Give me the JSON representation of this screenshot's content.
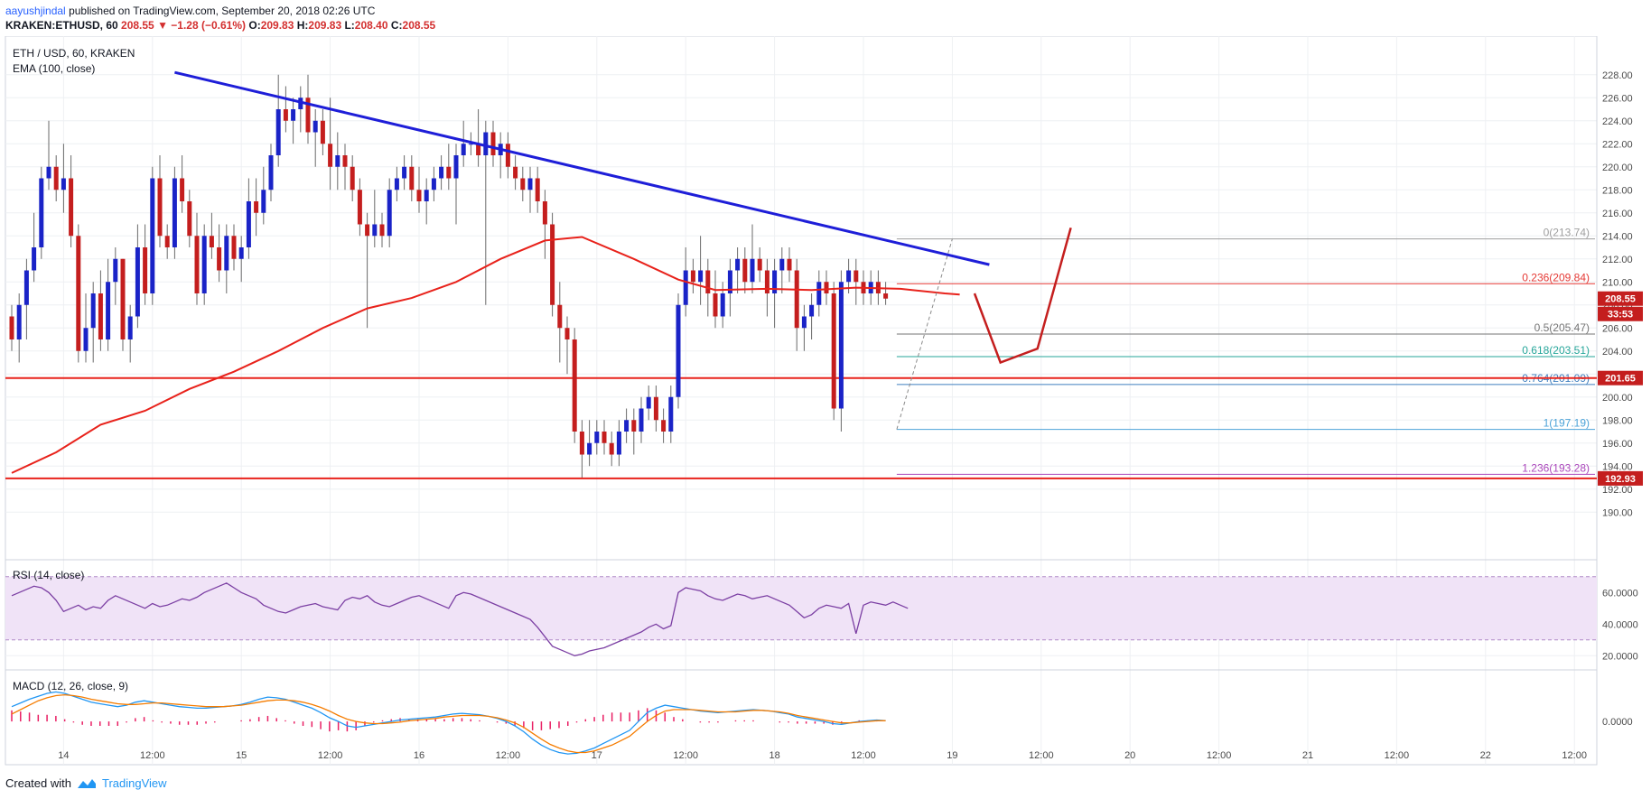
{
  "header": {
    "author": "aayushjindal",
    "published": "published on TradingView.com, September 20, 2018 02:26 UTC",
    "symbol": "KRAKEN:ETHUSD, 60",
    "last": "208.55",
    "change": "▼ −1.28 (−0.61%)",
    "o_label": "O:",
    "o": "209.83",
    "h_label": "H:",
    "h": "209.83",
    "l_label": "L:",
    "l": "208.40",
    "c_label": "C:",
    "c": "208.55"
  },
  "chart_labels": {
    "main_title": "ETH / USD, 60, KRAKEN",
    "ema_label": "EMA (100, close)",
    "rsi_label": "RSI (14, close)",
    "macd_label": "MACD (12, 26, close, 9)",
    "price_tag": "208.55",
    "countdown_tag": "33:53",
    "support_tag_1": "201.65",
    "support_tag_2": "192.93"
  },
  "colors": {
    "up": "#1a23c7",
    "down": "#c41e1e",
    "ema": "#e8221b",
    "trendline": "#1e1ed8",
    "support": "#e8221b",
    "rsi": "#7b3fa3",
    "macd": "#2196f3",
    "signal": "#f57c00",
    "hist": "#e91e63"
  },
  "footer": {
    "created_with": "Created with",
    "brand": "TradingView"
  },
  "chart_data": [
    {
      "type": "candlestick",
      "title": "ETH / USD, 60, KRAKEN",
      "x_ticks": [
        "14",
        "12:00",
        "15",
        "12:00",
        "16",
        "12:00",
        "17",
        "12:00",
        "18",
        "12:00",
        "19",
        "12:00",
        "20",
        "12:00",
        "21",
        "12:00",
        "22",
        "12:00"
      ],
      "ylim": [
        189.0,
        229.0
      ],
      "y_ticks": [
        "190.00",
        "192.00",
        "194.00",
        "196.00",
        "198.00",
        "200.00",
        "202.00",
        "204.00",
        "206.00",
        "208.00",
        "210.00",
        "212.00",
        "214.00",
        "216.00",
        "218.00",
        "220.00",
        "222.00",
        "224.00",
        "226.00",
        "228.00"
      ],
      "last_price": 208.55,
      "horizontal_support": [
        201.65,
        192.93
      ],
      "trendline": {
        "from_hour": 22,
        "from_price": 228.2,
        "to_hour": 132,
        "to_price": 211.5
      },
      "fibonacci": [
        {
          "label": "0(213.74)",
          "level": 213.74,
          "color": "#9e9e9e"
        },
        {
          "label": "0.236(209.84)",
          "level": 209.84,
          "color": "#e53935"
        },
        {
          "label": "0.5(205.47)",
          "level": 205.47,
          "color": "#757575"
        },
        {
          "label": "0.618(203.51)",
          "level": 203.51,
          "color": "#26a69a"
        },
        {
          "label": "0.764(201.09)",
          "level": 201.09,
          "color": "#3f7fbf"
        },
        {
          "label": "1(197.19)",
          "level": 197.19,
          "color": "#4ca3d8"
        },
        {
          "label": "1.236(193.28)",
          "level": 193.28,
          "color": "#ab47bc"
        }
      ],
      "ema_series": [
        [
          0,
          193.4
        ],
        [
          6,
          195.2
        ],
        [
          12,
          197.6
        ],
        [
          18,
          198.8
        ],
        [
          24,
          200.7
        ],
        [
          30,
          202.2
        ],
        [
          36,
          204.0
        ],
        [
          42,
          206.0
        ],
        [
          48,
          207.7
        ],
        [
          54,
          208.6
        ],
        [
          60,
          210.0
        ],
        [
          66,
          212.0
        ],
        [
          72,
          213.6
        ],
        [
          77,
          213.9
        ],
        [
          84,
          212.0
        ],
        [
          90,
          210.2
        ],
        [
          95,
          209.3
        ],
        [
          102,
          209.4
        ],
        [
          108,
          209.3
        ],
        [
          114,
          209.5
        ],
        [
          120,
          209.4
        ],
        [
          126,
          209.0
        ],
        [
          128,
          208.9
        ]
      ],
      "candles": [
        [
          207,
          208,
          204,
          205
        ],
        [
          205,
          209,
          203,
          208
        ],
        [
          208,
          212,
          205,
          211
        ],
        [
          211,
          216,
          210,
          213
        ],
        [
          213,
          220,
          212,
          219
        ],
        [
          219,
          224,
          218,
          220
        ],
        [
          220,
          221,
          217,
          218
        ],
        [
          218,
          222,
          216,
          219
        ],
        [
          219,
          221,
          213,
          214
        ],
        [
          214,
          215,
          203,
          204
        ],
        [
          204,
          209,
          203,
          206
        ],
        [
          206,
          210,
          203,
          209
        ],
        [
          209,
          211,
          204,
          205
        ],
        [
          205,
          212,
          204,
          210
        ],
        [
          210,
          213,
          208,
          212
        ],
        [
          212,
          212,
          204,
          205
        ],
        [
          205,
          208,
          203,
          207
        ],
        [
          207,
          215,
          206,
          213
        ],
        [
          213,
          215,
          208,
          209
        ],
        [
          209,
          220,
          208,
          219
        ],
        [
          219,
          221,
          213,
          214
        ],
        [
          214,
          215,
          212,
          213
        ],
        [
          213,
          220,
          212,
          219
        ],
        [
          219,
          221,
          216,
          217
        ],
        [
          217,
          218,
          213,
          214
        ],
        [
          214,
          216,
          208,
          209
        ],
        [
          209,
          215,
          208,
          214
        ],
        [
          214,
          216,
          212,
          213
        ],
        [
          213,
          215,
          210,
          211
        ],
        [
          211,
          215,
          209,
          214
        ],
        [
          214,
          215,
          211,
          212
        ],
        [
          212,
          214,
          210,
          213
        ],
        [
          213,
          219,
          212,
          217
        ],
        [
          217,
          219,
          214,
          216
        ],
        [
          216,
          220,
          215,
          218
        ],
        [
          218,
          222,
          217,
          221
        ],
        [
          221,
          228,
          220,
          225
        ],
        [
          225,
          227,
          223,
          224
        ],
        [
          224,
          226,
          222,
          225
        ],
        [
          225,
          227,
          223,
          226
        ],
        [
          226,
          228,
          222,
          223
        ],
        [
          223,
          225,
          220,
          224
        ],
        [
          224,
          225,
          221,
          222
        ],
        [
          222,
          226,
          218,
          220
        ],
        [
          220,
          223,
          218,
          221
        ],
        [
          221,
          222,
          218,
          220
        ],
        [
          220,
          221,
          217,
          218
        ],
        [
          218,
          219,
          214,
          215
        ],
        [
          215,
          216,
          206,
          214
        ],
        [
          214,
          218,
          213,
          215
        ],
        [
          215,
          216,
          213,
          214
        ],
        [
          214,
          219,
          213,
          218
        ],
        [
          218,
          220,
          217,
          219
        ],
        [
          219,
          221,
          218,
          220
        ],
        [
          220,
          221,
          217,
          218
        ],
        [
          218,
          220,
          216,
          217
        ],
        [
          217,
          219,
          215,
          218
        ],
        [
          218,
          220,
          217,
          219
        ],
        [
          219,
          221,
          218,
          220
        ],
        [
          220,
          222,
          218,
          219
        ],
        [
          219,
          222,
          215,
          221
        ],
        [
          221,
          224,
          220,
          222
        ],
        [
          222,
          223,
          221,
          222
        ],
        [
          222,
          225,
          220,
          221
        ],
        [
          221,
          224,
          208,
          223
        ],
        [
          223,
          224,
          220,
          221
        ],
        [
          221,
          223,
          219,
          222
        ],
        [
          222,
          223,
          219,
          220
        ],
        [
          220,
          221,
          218,
          219
        ],
        [
          219,
          220,
          217,
          218
        ],
        [
          218,
          220,
          216,
          219
        ],
        [
          219,
          220,
          216,
          217
        ],
        [
          217,
          218,
          212,
          215
        ],
        [
          215,
          216,
          207,
          208
        ],
        [
          208,
          210,
          203,
          206
        ],
        [
          206,
          207,
          202,
          205
        ],
        [
          205,
          206,
          196,
          197
        ],
        [
          197,
          198,
          193,
          195
        ],
        [
          195,
          198,
          194,
          196
        ],
        [
          196,
          198,
          195,
          197
        ],
        [
          197,
          198,
          195,
          196
        ],
        [
          196,
          197,
          194,
          195
        ],
        [
          195,
          198,
          194,
          197
        ],
        [
          197,
          199,
          196,
          198
        ],
        [
          198,
          199,
          195,
          197
        ],
        [
          197,
          200,
          196,
          199
        ],
        [
          199,
          201,
          198,
          200
        ],
        [
          200,
          201,
          197,
          198
        ],
        [
          198,
          199,
          196,
          197
        ],
        [
          197,
          201,
          196,
          200
        ],
        [
          200,
          209,
          199,
          208
        ],
        [
          208,
          213,
          207,
          211
        ],
        [
          211,
          212,
          209,
          210
        ],
        [
          210,
          214,
          208,
          211
        ],
        [
          211,
          212,
          207,
          209
        ],
        [
          209,
          211,
          206,
          207
        ],
        [
          207,
          210,
          206,
          209
        ],
        [
          209,
          212,
          207,
          211
        ],
        [
          211,
          213,
          209,
          212
        ],
        [
          212,
          213,
          209,
          210
        ],
        [
          210,
          215,
          209,
          212
        ],
        [
          212,
          213,
          210,
          211
        ],
        [
          211,
          212,
          207,
          209
        ],
        [
          209,
          212,
          206,
          211
        ],
        [
          211,
          213,
          209,
          212
        ],
        [
          212,
          213,
          210,
          211
        ],
        [
          211,
          212,
          204,
          206
        ],
        [
          206,
          208,
          204,
          207
        ],
        [
          207,
          209,
          205,
          208
        ],
        [
          208,
          211,
          207,
          210
        ],
        [
          210,
          211,
          208,
          209
        ],
        [
          209,
          210,
          198,
          199
        ],
        [
          199,
          211,
          197,
          210
        ],
        [
          210,
          212,
          209,
          211
        ],
        [
          211,
          212,
          208,
          210
        ],
        [
          210,
          211,
          208,
          209
        ],
        [
          209,
          211,
          208,
          210
        ],
        [
          210,
          211,
          208,
          209
        ],
        [
          209,
          210,
          208,
          208.55
        ]
      ]
    },
    {
      "type": "line",
      "title": "RSI (14, close)",
      "ylim": [
        15,
        75
      ],
      "y_ticks": [
        "20.0000",
        "40.0000",
        "60.0000"
      ],
      "bands": [
        30,
        70
      ],
      "values": [
        58,
        60,
        62,
        64,
        63,
        60,
        55,
        48,
        50,
        52,
        49,
        51,
        50,
        55,
        58,
        56,
        54,
        52,
        50,
        53,
        51,
        52,
        54,
        56,
        55,
        57,
        60,
        62,
        64,
        66,
        63,
        60,
        58,
        56,
        52,
        50,
        48,
        47,
        49,
        51,
        52,
        53,
        51,
        50,
        49,
        55,
        57,
        56,
        58,
        54,
        52,
        51,
        53,
        55,
        57,
        58,
        56,
        54,
        52,
        50,
        58,
        60,
        59,
        57,
        55,
        53,
        51,
        49,
        47,
        45,
        43,
        38,
        32,
        26,
        24,
        22,
        20,
        21,
        23,
        24,
        25,
        27,
        29,
        31,
        33,
        35,
        38,
        40,
        37,
        39,
        60,
        63,
        62,
        61,
        58,
        56,
        55,
        57,
        59,
        58,
        56,
        57,
        58,
        56,
        54,
        52,
        48,
        44,
        46,
        50,
        52,
        51,
        50,
        53,
        34,
        52,
        54,
        53,
        52,
        54,
        52,
        50
      ]
    },
    {
      "type": "line",
      "title": "MACD (12, 26, close, 9)",
      "ylim": [
        -5,
        6
      ],
      "y_ticks": [
        "0.0000"
      ],
      "series": [
        {
          "values": [
            2,
            2.5,
            3,
            3.4,
            3.8,
            4.0,
            3.8,
            3.4,
            3.0,
            2.6,
            2.4,
            2.2,
            2.0,
            2.2,
            2.6,
            2.8,
            2.6,
            2.4,
            2.2,
            2.0,
            1.9,
            1.8,
            1.8,
            1.9,
            2.0,
            2.1,
            2.3,
            2.6,
            3.0,
            3.3,
            3.2,
            3.0,
            2.6,
            2.2,
            1.8,
            1.2,
            0.5,
            0.0,
            -0.6,
            -0.8,
            -0.6,
            -0.4,
            -0.2,
            0.0,
            0.2,
            0.3,
            0.4,
            0.5,
            0.6,
            0.8,
            1.0,
            1.1,
            1.0,
            0.9,
            0.7,
            0.4,
            0.0,
            -0.6,
            -1.4,
            -2.4,
            -3.2,
            -3.8,
            -4.2,
            -4.4,
            -4.3,
            -4.0,
            -3.6,
            -3.0,
            -2.4,
            -1.8,
            -1.2,
            0.0,
            1.2,
            1.8,
            2.2,
            2.0,
            1.8,
            1.6,
            1.4,
            1.3,
            1.2,
            1.3,
            1.4,
            1.5,
            1.6,
            1.5,
            1.4,
            1.2,
            1.0,
            0.6,
            0.4,
            0.2,
            0.0,
            -0.3,
            -0.4,
            -0.2,
            0.0,
            0.1,
            0.2,
            0.1
          ]
        },
        {
          "values": [
            1,
            1.6,
            2.2,
            2.8,
            3.2,
            3.5,
            3.6,
            3.5,
            3.3,
            3.0,
            2.8,
            2.6,
            2.4,
            2.3,
            2.3,
            2.4,
            2.5,
            2.5,
            2.4,
            2.3,
            2.2,
            2.1,
            2.0,
            2.0,
            2.0,
            2.1,
            2.2,
            2.4,
            2.6,
            2.8,
            2.9,
            2.9,
            2.8,
            2.6,
            2.3,
            1.9,
            1.4,
            0.8,
            0.3,
            0.0,
            -0.2,
            -0.3,
            -0.3,
            -0.2,
            -0.1,
            0.1,
            0.2,
            0.3,
            0.4,
            0.6,
            0.7,
            0.8,
            0.8,
            0.8,
            0.7,
            0.5,
            0.2,
            -0.2,
            -0.8,
            -1.6,
            -2.4,
            -3.1,
            -3.6,
            -4.0,
            -4.2,
            -4.2,
            -4.0,
            -3.6,
            -3.2,
            -2.6,
            -2.0,
            -1.0,
            0.0,
            0.8,
            1.4,
            1.6,
            1.6,
            1.6,
            1.5,
            1.4,
            1.3,
            1.3,
            1.3,
            1.4,
            1.5,
            1.5,
            1.4,
            1.3,
            1.1,
            0.8,
            0.6,
            0.4,
            0.2,
            0.0,
            -0.2,
            -0.2,
            -0.1,
            0.0,
            0.1,
            0.1
          ]
        }
      ]
    }
  ]
}
